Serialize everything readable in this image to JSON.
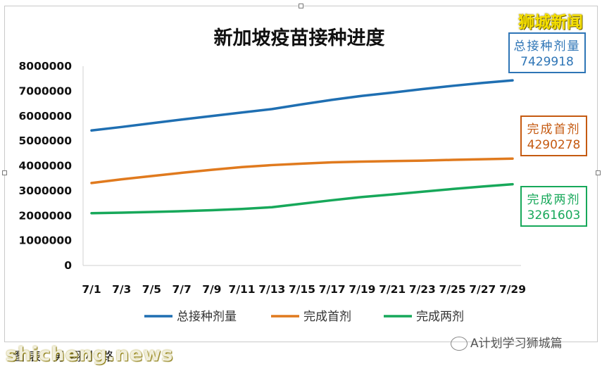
{
  "brand": "狮城新闻",
  "chart_data": {
    "type": "line",
    "title": "新加坡疫苗接种进度",
    "categories": [
      "7/1",
      "7/3",
      "7/5",
      "7/7",
      "7/9",
      "7/11",
      "7/13",
      "7/15",
      "7/17",
      "7/19",
      "7/21",
      "7/23",
      "7/25",
      "7/27",
      "7/29"
    ],
    "yticks": [
      "0",
      "1000000",
      "2000000",
      "3000000",
      "4000000",
      "5000000",
      "6000000",
      "7000000",
      "8000000"
    ],
    "ylim": [
      0,
      8000000
    ],
    "grid": false,
    "legend_position": "bottom",
    "series": [
      {
        "name": "总接种剂量",
        "color": "#1f6fb2",
        "values": [
          5420000,
          5560000,
          5710000,
          5860000,
          6000000,
          6140000,
          6280000,
          6470000,
          6650000,
          6810000,
          6940000,
          7080000,
          7210000,
          7330000,
          7429918
        ]
      },
      {
        "name": "完成首剂",
        "color": "#e07a1e",
        "values": [
          3310000,
          3460000,
          3590000,
          3720000,
          3840000,
          3950000,
          4030000,
          4090000,
          4140000,
          4170000,
          4190000,
          4210000,
          4240000,
          4265000,
          4290278
        ]
      },
      {
        "name": "完成两剂",
        "color": "#17a85a",
        "values": [
          2100000,
          2120000,
          2150000,
          2180000,
          2220000,
          2270000,
          2340000,
          2480000,
          2620000,
          2750000,
          2850000,
          2960000,
          3070000,
          3170000,
          3261603
        ]
      }
    ],
    "annotations": [
      {
        "label": "总接种剂量",
        "value": "7429918",
        "color": "#2e75b6"
      },
      {
        "label": "完成首剂",
        "value": "4290278",
        "color": "#c55a11"
      },
      {
        "label": "完成两剂",
        "value": "3261603",
        "color": "#17a85a"
      }
    ]
  },
  "source_note": "图表 男翔小路",
  "watermark": "shicheng.news",
  "wechat": "A计划学习狮城篇"
}
